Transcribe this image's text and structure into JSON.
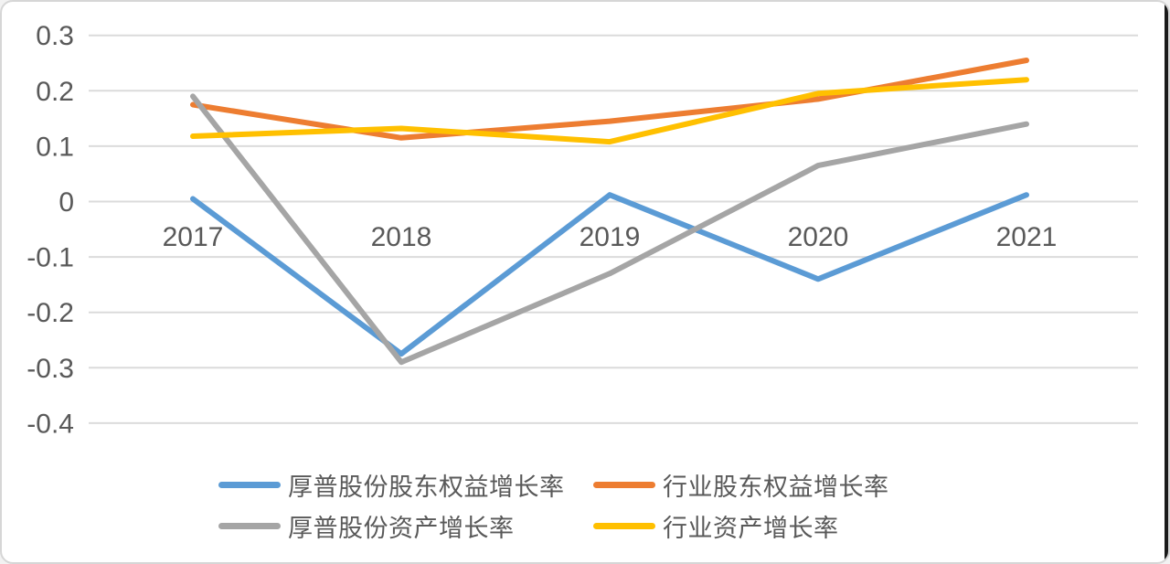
{
  "card": {
    "background": "#ffffff",
    "border_color": "#d6d6d6",
    "edge_strip_color": "#1a1a1a"
  },
  "chart_data": {
    "type": "line",
    "title": "",
    "xlabel": "",
    "ylabel": "",
    "categories": [
      "2017",
      "2018",
      "2019",
      "2020",
      "2021"
    ],
    "series": [
      {
        "id": "houpu-equity-growth",
        "name": "厚普股份股东权益增长率",
        "color": "#5B9BD5",
        "values": [
          0.005,
          -0.275,
          0.012,
          -0.14,
          0.012
        ]
      },
      {
        "id": "industry-equity-growth",
        "name": "行业股东权益增长率",
        "color": "#ED7D31",
        "values": [
          0.175,
          0.115,
          0.145,
          0.185,
          0.255
        ]
      },
      {
        "id": "houpu-asset-growth",
        "name": "厚普股份资产增长率",
        "color": "#A5A5A5",
        "values": [
          0.19,
          -0.29,
          -0.13,
          0.065,
          0.14
        ]
      },
      {
        "id": "industry-asset-growth",
        "name": "行业资产增长率",
        "color": "#FFC000",
        "values": [
          0.118,
          0.132,
          0.108,
          0.195,
          0.22
        ]
      }
    ],
    "yticks": [
      0.3,
      0.2,
      0.1,
      0,
      -0.1,
      -0.2,
      -0.3,
      -0.4
    ],
    "ylim": [
      -0.45,
      0.335
    ],
    "grid": true,
    "gridline_color": "#DBDBDB",
    "axis_text_color": "#595959",
    "line_width": 6,
    "legend_position": "bottom",
    "legend_rows": 2,
    "legend_columns": 2
  }
}
